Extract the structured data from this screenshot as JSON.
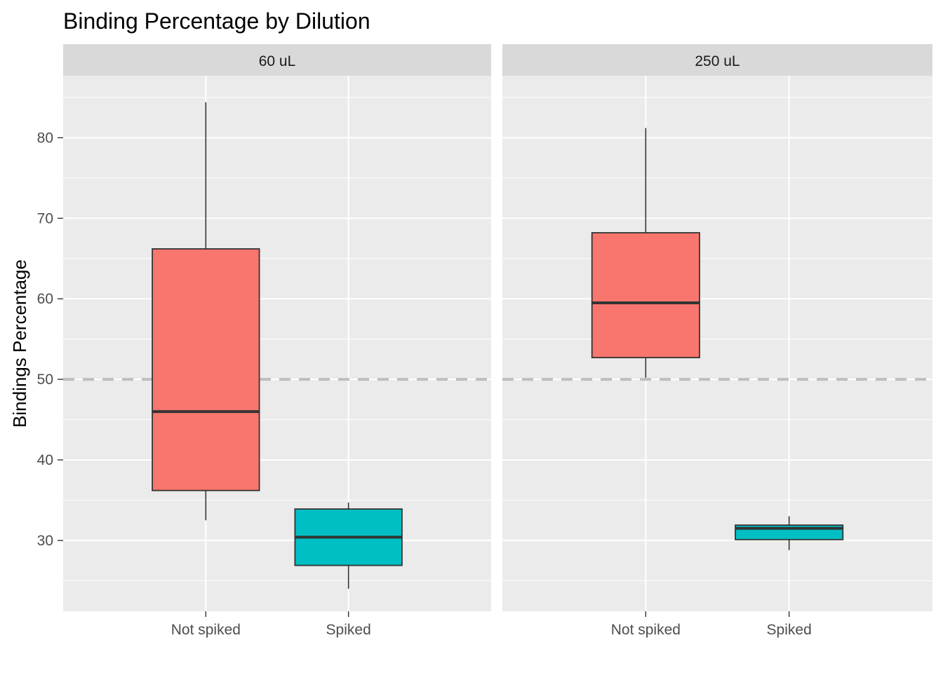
{
  "chart_data": {
    "type": "boxplot",
    "title": "Binding Percentage by Dilution",
    "ylabel": "Bindings Percentage",
    "xlabel": "",
    "ylim": [
      21.2,
      87.7
    ],
    "yticks": [
      30,
      40,
      50,
      60,
      70,
      80
    ],
    "reference_line": {
      "y": 50,
      "style": "dashed",
      "color": "#BEBEBE"
    },
    "grid": true,
    "categories": [
      "Not spiked",
      "Spiked"
    ],
    "fill_colors": {
      "Not spiked": "#F8766D",
      "Spiked": "#00BFC4"
    },
    "panels": [
      {
        "label": "60 uL",
        "boxes": [
          {
            "category": "Not spiked",
            "min": 32.5,
            "q1": 36.2,
            "median": 46.0,
            "q3": 66.2,
            "max": 84.4
          },
          {
            "category": "Spiked",
            "min": 24.0,
            "q1": 26.9,
            "median": 30.4,
            "q3": 33.9,
            "max": 34.7
          }
        ]
      },
      {
        "label": "250 uL",
        "boxes": [
          {
            "category": "Not spiked",
            "min": 50.2,
            "q1": 52.7,
            "median": 59.5,
            "q3": 68.2,
            "max": 81.2
          },
          {
            "category": "Spiked",
            "min": 28.8,
            "q1": 30.1,
            "median": 31.5,
            "q3": 31.9,
            "max": 33.0
          }
        ]
      }
    ]
  }
}
